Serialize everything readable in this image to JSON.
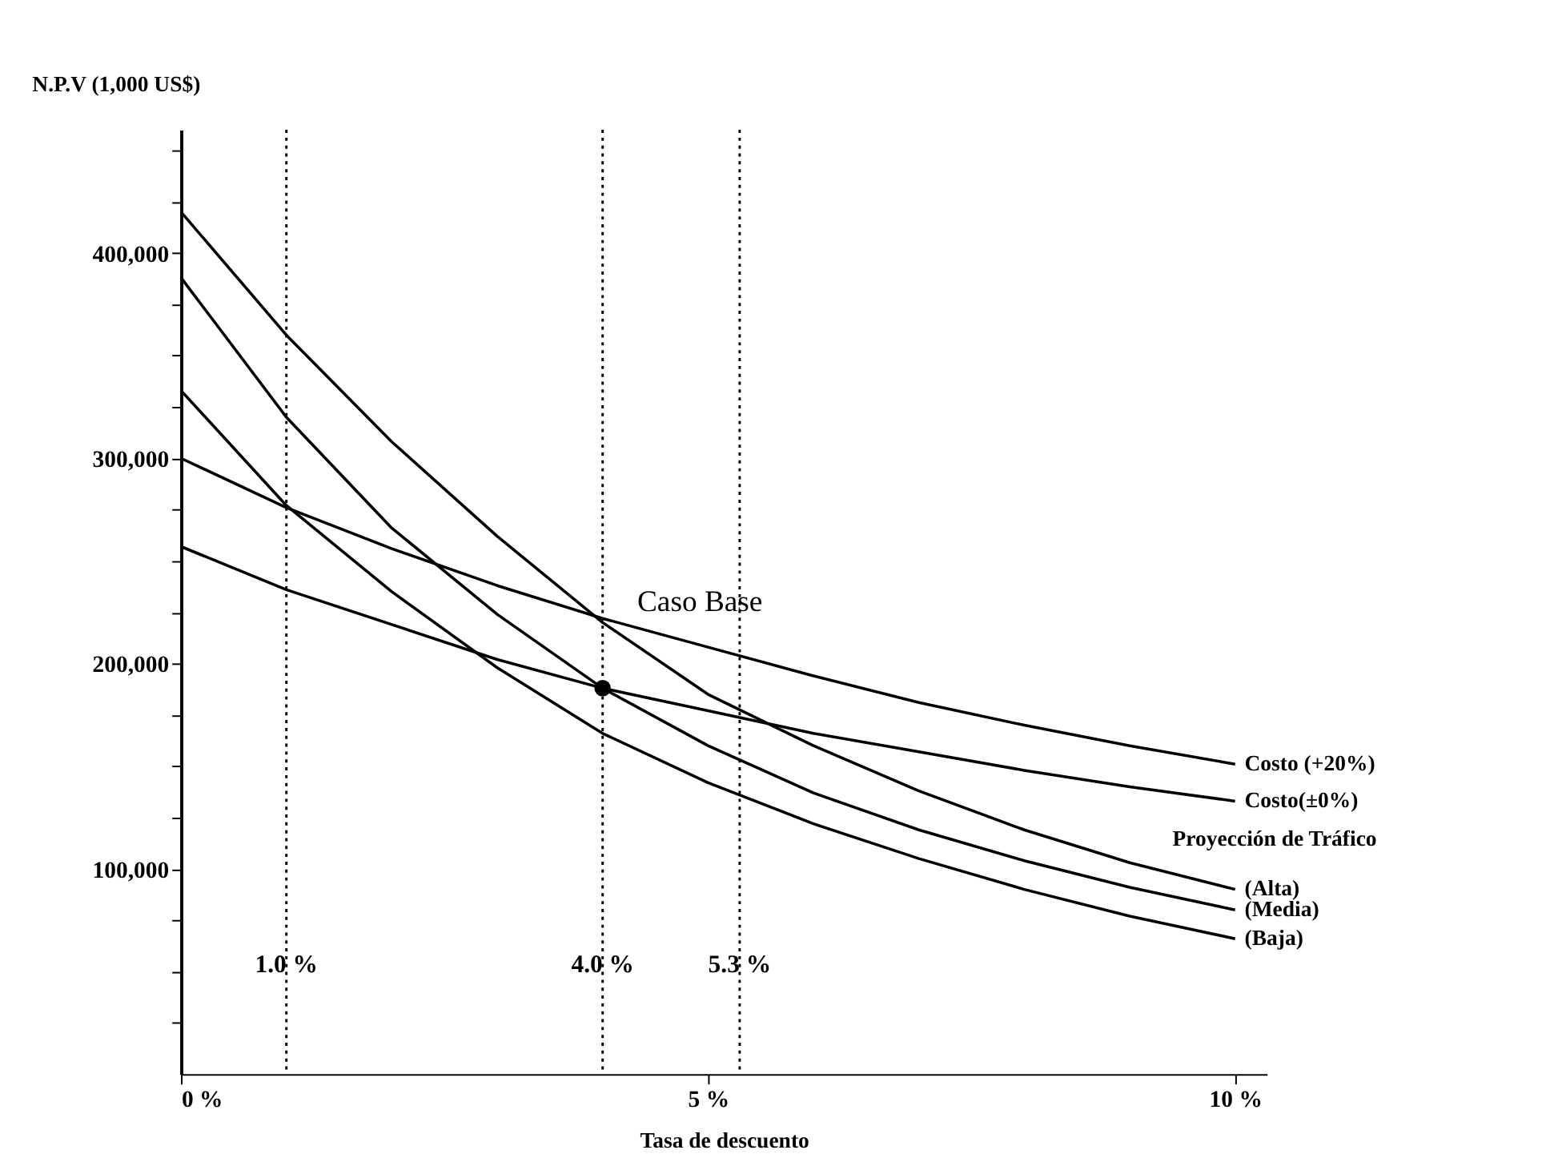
{
  "chart_data": {
    "type": "line",
    "xlabel": "Tasa de descuento",
    "ylabel": "N.P.V (1,000 US$)",
    "x": [
      0,
      1,
      2,
      3,
      4,
      5,
      6,
      7,
      8,
      9,
      10
    ],
    "series": [
      {
        "name": "Costo (+20%)",
        "color": "#000000",
        "values": [
          300000,
          276000,
          256000,
          238000,
          222000,
          208000,
          194000,
          181000,
          170000,
          160000,
          151000
        ]
      },
      {
        "name": "Costo(±0%)",
        "color": "#000000",
        "values": [
          257000,
          236000,
          219000,
          202000,
          188000,
          177000,
          166000,
          157000,
          148000,
          140000,
          133000
        ]
      },
      {
        "name": "(Alta)",
        "color": "#000000",
        "values": [
          420000,
          360000,
          308000,
          262000,
          220000,
          185000,
          160000,
          138000,
          119000,
          103000,
          90000
        ]
      },
      {
        "name": "(Media)",
        "color": "#000000",
        "values": [
          388000,
          320000,
          266000,
          224000,
          188000,
          160000,
          137000,
          119000,
          104000,
          91000,
          80000
        ]
      },
      {
        "name": "(Baja)",
        "color": "#000000",
        "values": [
          333000,
          277000,
          235000,
          198000,
          166000,
          142000,
          122000,
          105000,
          90000,
          77000,
          66000
        ]
      }
    ],
    "xlim": [
      0,
      10.3
    ],
    "xticks": [
      {
        "value": 0,
        "label": "0 %"
      },
      {
        "value": 5,
        "label": "5 %"
      },
      {
        "value": 10,
        "label": "10 %"
      }
    ],
    "ylim": [
      0,
      460000
    ],
    "yticks": [
      {
        "value": 25000,
        "label": null
      },
      {
        "value": 50000,
        "label": null
      },
      {
        "value": 75000,
        "label": null
      },
      {
        "value": 100000,
        "label": "100,000"
      },
      {
        "value": 125000,
        "label": null
      },
      {
        "value": 150000,
        "label": null
      },
      {
        "value": 175000,
        "label": null
      },
      {
        "value": 200000,
        "label": "200,000"
      },
      {
        "value": 225000,
        "label": null
      },
      {
        "value": 250000,
        "label": null
      },
      {
        "value": 275000,
        "label": null
      },
      {
        "value": 300000,
        "label": "300,000"
      },
      {
        "value": 325000,
        "label": null
      },
      {
        "value": 350000,
        "label": null
      },
      {
        "value": 375000,
        "label": null
      },
      {
        "value": 400000,
        "label": "400,000"
      },
      {
        "value": 425000,
        "label": null
      },
      {
        "value": 450000,
        "label": null
      }
    ],
    "ref_lines": [
      {
        "axis": "x",
        "value": 1.0,
        "label": "1.0 %",
        "color": "#000000",
        "line_style": "dotted"
      },
      {
        "axis": "x",
        "value": 4.0,
        "label": "4.0 %",
        "color": "#000000",
        "line_style": "dotted"
      },
      {
        "axis": "x",
        "value": 5.3,
        "label": "5.3 %",
        "color": "#000000",
        "line_style": "dotted"
      }
    ],
    "annotations": [
      {
        "text": "Caso Base",
        "x": 4.0,
        "y": 188000
      },
      "Proyección de Tráfico"
    ],
    "grid": false,
    "marker": "none",
    "line_style": "solid"
  }
}
